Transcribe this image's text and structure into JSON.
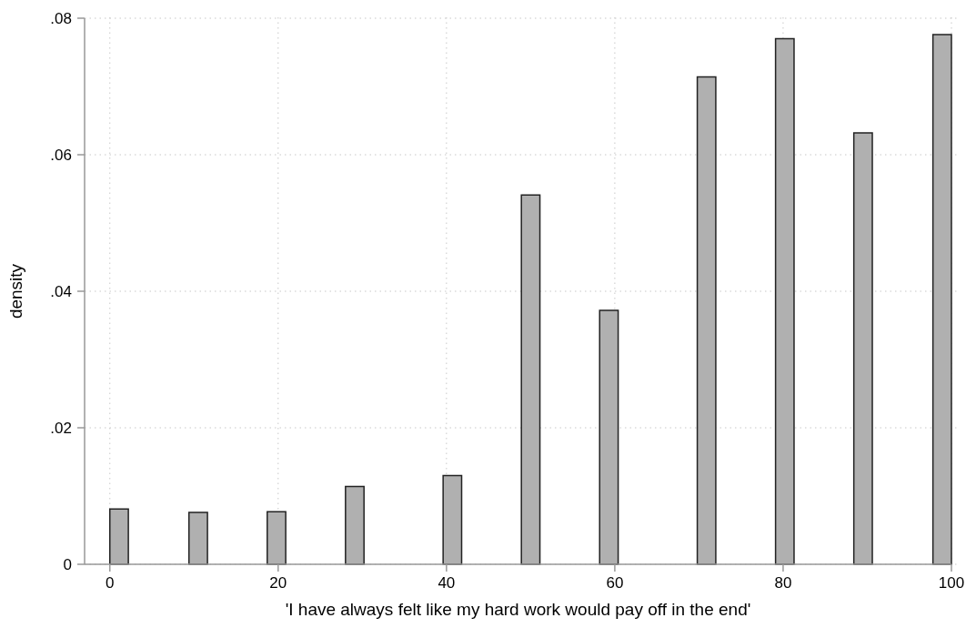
{
  "chart_data": {
    "type": "histogram",
    "xlabel": "'I have always felt like my hard work would pay off in the end'",
    "ylabel": "density",
    "bins": [
      0,
      2.2,
      9.4,
      11.6,
      18.7,
      20.9,
      28,
      30.2,
      39.6,
      41.8,
      48.9,
      51.1,
      58.2,
      60.4,
      69.8,
      72,
      79.1,
      81.3,
      88.4,
      90.6,
      97.8,
      100
    ],
    "values": [
      0.0081,
      0,
      0.0076,
      0,
      0.0077,
      0,
      0.0114,
      0,
      0.013,
      0,
      0.0541,
      0,
      0.0372,
      0,
      0.0714,
      0,
      0.077,
      0,
      0.0632,
      0,
      0.0776
    ],
    "color": "#b0b0b0",
    "xlim": [
      -3,
      100
    ],
    "xticks": [
      0,
      20,
      40,
      60,
      80,
      100
    ],
    "ylim": [
      0,
      0.08
    ],
    "yticks": [
      0,
      {
        "value": 0.02,
        "label": ".02"
      },
      {
        "value": 0.04,
        "label": ".04"
      },
      {
        "value": 0.06,
        "label": ".06"
      },
      {
        "value": 0.08,
        "label": ".08"
      }
    ],
    "grid": true
  }
}
